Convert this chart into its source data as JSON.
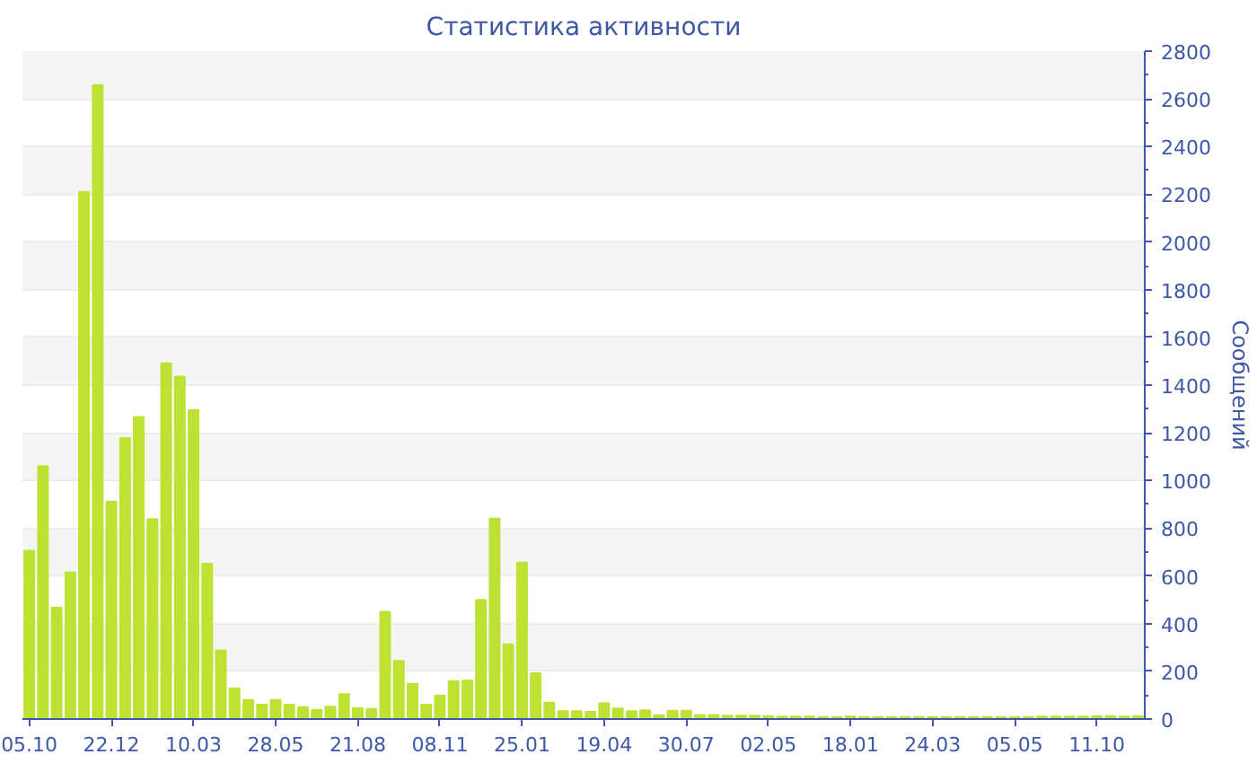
{
  "chart_data": {
    "type": "bar",
    "title": "Статистика активности",
    "ylabel": "Сообщений",
    "categories": [
      "05.10",
      null,
      null,
      null,
      null,
      null,
      "22.12",
      null,
      null,
      null,
      null,
      null,
      "10.03",
      null,
      null,
      null,
      null,
      null,
      "28.05",
      null,
      null,
      null,
      null,
      null,
      "21.08",
      null,
      null,
      null,
      null,
      null,
      "08.11",
      null,
      null,
      null,
      null,
      null,
      "25.01",
      null,
      null,
      null,
      null,
      null,
      "19.04",
      null,
      null,
      null,
      null,
      null,
      "30.07",
      null,
      null,
      null,
      null,
      null,
      "02.05",
      null,
      null,
      null,
      null,
      null,
      "18.01",
      null,
      null,
      null,
      null,
      null,
      "24.03",
      null,
      null,
      null,
      null,
      null,
      "05.05",
      null,
      null,
      null,
      null,
      null,
      "11.10",
      null,
      null,
      null
    ],
    "values": [
      706,
      1060,
      467,
      615,
      2210,
      2658,
      912,
      1178,
      1266,
      838,
      1491,
      1436,
      1296,
      651,
      288,
      129,
      80,
      60,
      80,
      60,
      50,
      39,
      52,
      104,
      45,
      42,
      450,
      244,
      148,
      60,
      99,
      159,
      162,
      500,
      840,
      313,
      656,
      192,
      69,
      33,
      33,
      30,
      66,
      44,
      33,
      37,
      16,
      35,
      35,
      17,
      17,
      14,
      14,
      14,
      12,
      10,
      10,
      10,
      8,
      8,
      10,
      8,
      8,
      8,
      8,
      8,
      8,
      8,
      8,
      8,
      8,
      8,
      8,
      8,
      10,
      10,
      10,
      10,
      12,
      12,
      10,
      12
    ],
    "color": "#bde234",
    "ylim": [
      0,
      2800
    ],
    "yticks": [
      0,
      200,
      400,
      600,
      800,
      1000,
      1200,
      1400,
      1600,
      1800,
      2000,
      2200,
      2400,
      2600,
      2800
    ],
    "grid": "y"
  }
}
